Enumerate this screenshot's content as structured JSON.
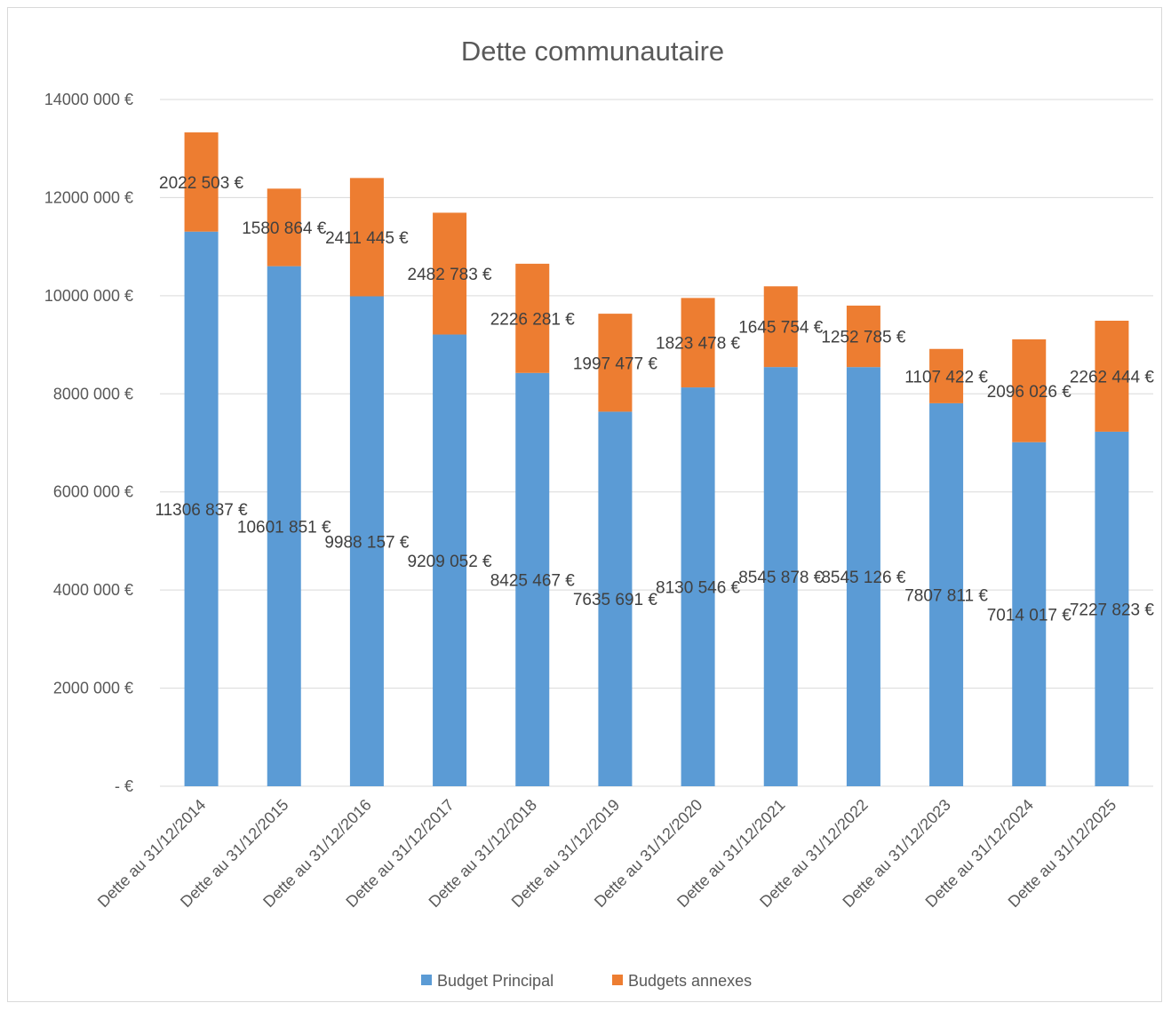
{
  "chart_data": {
    "type": "bar",
    "stacked": true,
    "title": "Dette communautaire",
    "xlabel": "",
    "ylabel": "",
    "ylim": [
      0,
      14000000
    ],
    "y_ticks": [
      0,
      2000000,
      4000000,
      6000000,
      8000000,
      10000000,
      12000000,
      14000000
    ],
    "y_tick_labels": [
      "-   €",
      "2000 000 €",
      "4000 000 €",
      "6000 000 €",
      "8000 000 €",
      "10000 000 €",
      "12000 000 €",
      "14000 000 €"
    ],
    "grid": true,
    "legend_position": "bottom",
    "categories": [
      "Dette au 31/12/2014",
      "Dette au 31/12/2015",
      "Dette au 31/12/2016",
      "Dette au 31/12/2017",
      "Dette au 31/12/2018",
      "Dette au 31/12/2019",
      "Dette au 31/12/2020",
      "Dette au 31/12/2021",
      "Dette au 31/12/2022",
      "Dette au 31/12/2023",
      "Dette au 31/12/2024",
      "Dette au 31/12/2025"
    ],
    "series": [
      {
        "name": "Budget Principal",
        "color": "#5b9bd5",
        "values": [
          11306837,
          10601851,
          9988157,
          9209052,
          8425467,
          7635691,
          8130546,
          8545878,
          8545126,
          7807811,
          7014017,
          7227823
        ],
        "labels": [
          "11306 837 €",
          "10601 851 €",
          "9988 157 €",
          "9209 052 €",
          "8425 467 €",
          "7635 691 €",
          "8130 546 €",
          "8545 878 €",
          "8545 126 €",
          "7807 811 €",
          "7014 017 €",
          "7227 823 €"
        ]
      },
      {
        "name": "Budgets annexes",
        "color": "#ed7d31",
        "values": [
          2022503,
          1580864,
          2411445,
          2482783,
          2226281,
          1997477,
          1823478,
          1645754,
          1252785,
          1107422,
          2096026,
          2262444
        ],
        "labels": [
          "2022 503 €",
          "1580 864 €",
          "2411 445 €",
          "2482 783 €",
          "2226 281 €",
          "1997 477 €",
          "1823 478 €",
          "1645 754 €",
          "1252 785 €",
          "1107 422 €",
          "2096 026 €",
          "2262 444 €"
        ]
      }
    ]
  }
}
